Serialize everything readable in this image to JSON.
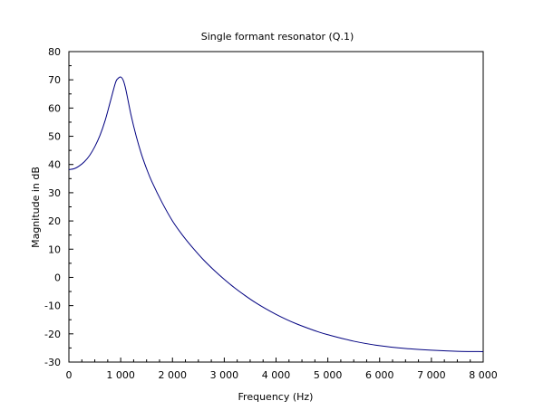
{
  "chart_data": {
    "type": "line",
    "title": "Single formant resonator (Q.1)",
    "xlabel": "Frequency (Hz)",
    "ylabel": "Magnitude in dB",
    "xlim": [
      0,
      8000
    ],
    "ylim": [
      -30,
      80
    ],
    "x_ticks": [
      {
        "value": 0,
        "label": "0"
      },
      {
        "value": 1000,
        "label": "1 000"
      },
      {
        "value": 2000,
        "label": "2 000"
      },
      {
        "value": 3000,
        "label": "3 000"
      },
      {
        "value": 4000,
        "label": "4 000"
      },
      {
        "value": 5000,
        "label": "5 000"
      },
      {
        "value": 6000,
        "label": "6 000"
      },
      {
        "value": 7000,
        "label": "7 000"
      },
      {
        "value": 8000,
        "label": "8 000"
      }
    ],
    "y_ticks": [
      {
        "value": -30,
        "label": "-30"
      },
      {
        "value": -20,
        "label": "-20"
      },
      {
        "value": -10,
        "label": "-10"
      },
      {
        "value": 0,
        "label": "0"
      },
      {
        "value": 10,
        "label": "10"
      },
      {
        "value": 20,
        "label": "20"
      },
      {
        "value": 30,
        "label": "30"
      },
      {
        "value": 40,
        "label": "40"
      },
      {
        "value": 50,
        "label": "50"
      },
      {
        "value": 60,
        "label": "60"
      },
      {
        "value": 70,
        "label": "70"
      },
      {
        "value": 80,
        "label": "80"
      }
    ],
    "grid": false,
    "series": [
      {
        "color": "#000080",
        "x": [
          0,
          100,
          200,
          300,
          400,
          500,
          600,
          700,
          800,
          900,
          950,
          1000,
          1050,
          1100,
          1200,
          1300,
          1400,
          1500,
          1600,
          1800,
          2000,
          2200,
          2400,
          2600,
          2800,
          3000,
          3200,
          3400,
          3600,
          3800,
          4000,
          4200,
          4400,
          4600,
          4800,
          5000,
          5500,
          6000,
          6500,
          7000,
          7500,
          8000
        ],
        "y": [
          38.2,
          38.5,
          39.5,
          41.0,
          43.2,
          46.3,
          50.3,
          55.6,
          62.3,
          69.0,
          70.5,
          71.0,
          69.8,
          66.5,
          57.5,
          50.0,
          43.7,
          38.5,
          34.0,
          26.5,
          20.0,
          14.8,
          10.3,
          6.2,
          2.6,
          -0.7,
          -3.7,
          -6.4,
          -8.9,
          -11.1,
          -13.1,
          -14.9,
          -16.5,
          -17.9,
          -19.2,
          -20.3,
          -22.6,
          -24.2,
          -25.2,
          -25.8,
          -26.2,
          -26.3
        ]
      }
    ]
  }
}
